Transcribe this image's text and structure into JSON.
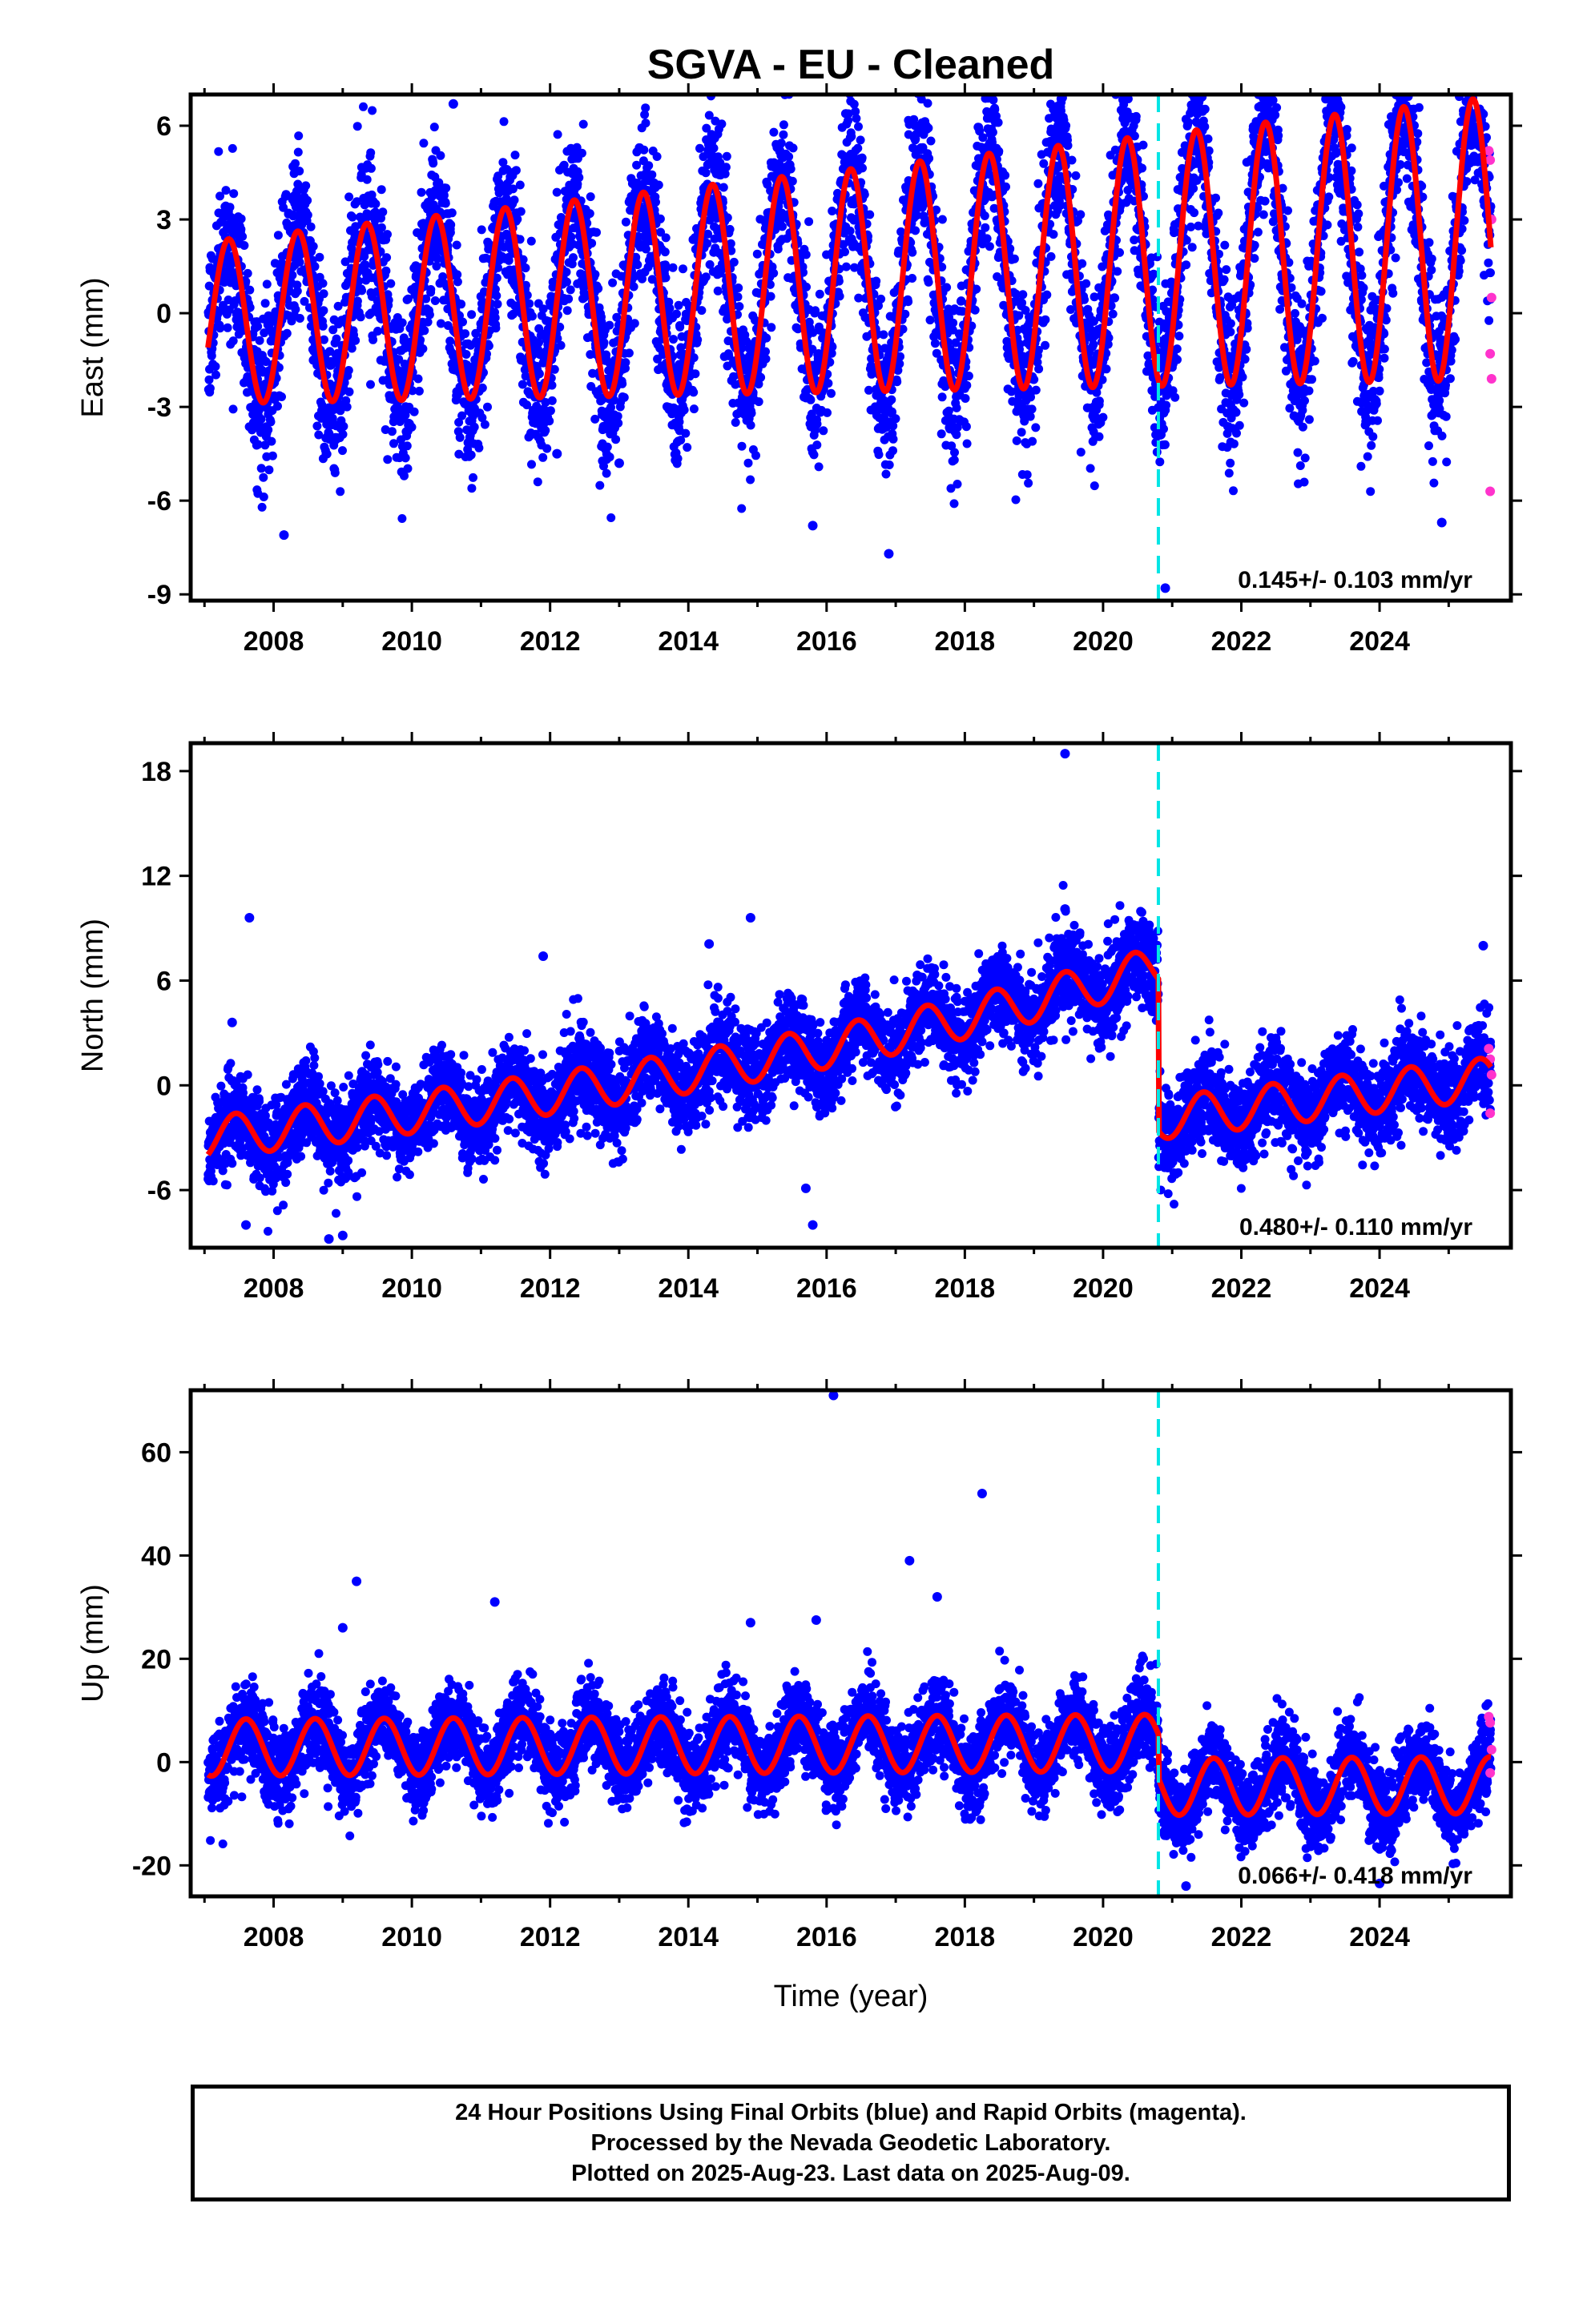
{
  "chart_data": {
    "type": "scatter",
    "title": "SGVA  - EU - Cleaned",
    "xlabel": "Time (year)",
    "xlim": [
      2006.8,
      2025.9
    ],
    "xticks": [
      2008,
      2010,
      2012,
      2014,
      2016,
      2018,
      2020,
      2022,
      2024
    ],
    "xtick_labels": [
      "2008",
      "2010",
      "2012",
      "2014",
      "2016",
      "2018",
      "2020",
      "2022",
      "2024"
    ],
    "grid": false,
    "legend": "none",
    "colors": {
      "final_orbits": "#0000ff",
      "rapid_orbits": "#ff33cc",
      "model": "#ff0000",
      "step": "#00e5e5"
    },
    "series_description": "24 hour positions (blue = final orbits, magenta = rapid orbits) with fitted trend + seasonal model (red)",
    "step_epoch": 2020.8,
    "data_span": [
      2007.05,
      2025.61
    ],
    "panels": [
      {
        "component": "east",
        "ylabel": "East (mm)",
        "ylim": [
          -9.2,
          7.0
        ],
        "yticks": [
          -9,
          -6,
          -3,
          0,
          3,
          6
        ],
        "ytick_labels": [
          "-9",
          "-6",
          "-3",
          "0",
          "3",
          "6"
        ],
        "rate": "0.145+/- 0.103 mm/yr",
        "model": {
          "t0": 2007.05,
          "offset_start": -0.3,
          "rate": 0.145,
          "seasonal_amp": 2.6,
          "phase_peak": 0.35,
          "amp_growth": 0.04,
          "step": 0.0
        },
        "scatter_noise": 1.3,
        "outliers": [
          [
            2010.6,
            6.7
          ],
          [
            2008.15,
            -7.1
          ],
          [
            2015.8,
            -6.8
          ],
          [
            2016.9,
            -7.7
          ],
          [
            2020.9,
            -8.8
          ],
          [
            2024.9,
            -6.7
          ],
          [
            2012.1,
            -4.5
          ],
          [
            2013.0,
            -4.8
          ]
        ],
        "rapid_points": [
          [
            2025.58,
            5.2
          ],
          [
            2025.6,
            4.9
          ],
          [
            2025.62,
            3.0
          ],
          [
            2025.62,
            0.5
          ],
          [
            2025.6,
            -1.3
          ],
          [
            2025.62,
            -2.1
          ],
          [
            2025.6,
            -5.7
          ]
        ]
      },
      {
        "component": "north",
        "ylabel": "North (mm)",
        "ylim": [
          -9.3,
          19.6
        ],
        "yticks": [
          -6,
          0,
          6,
          12,
          18
        ],
        "ytick_labels": [
          "-6",
          "0",
          "6",
          "12",
          "18"
        ],
        "rate": "0.480+/- 0.110 mm/yr",
        "model": {
          "t0": 2007.05,
          "offset_start": -3.0,
          "rate": 0.48,
          "seasonal_amp": 1.2,
          "phase_peak": 0.45,
          "amp_growth": 0.0,
          "step": -5.5,
          "pre_step_curve": true
        },
        "scatter_noise": 1.3,
        "outliers": [
          [
            2007.65,
            9.6
          ],
          [
            2007.4,
            3.6
          ],
          [
            2008.8,
            -8.8
          ],
          [
            2011.9,
            7.4
          ],
          [
            2014.3,
            8.1
          ],
          [
            2014.9,
            9.6
          ],
          [
            2015.7,
            -5.9
          ],
          [
            2015.8,
            -8.0
          ],
          [
            2019.45,
            19.0
          ],
          [
            2019.45,
            10.1
          ],
          [
            2025.5,
            8.0
          ],
          [
            2007.6,
            -8.0
          ],
          [
            2009.0,
            -8.6
          ]
        ],
        "rapid_points": [
          [
            2025.58,
            2.1
          ],
          [
            2025.6,
            1.5
          ],
          [
            2025.62,
            0.6
          ],
          [
            2025.6,
            -1.6
          ]
        ]
      },
      {
        "component": "up",
        "ylabel": "Up (mm)",
        "ylim": [
          -26.0,
          72.0
        ],
        "yticks": [
          -20,
          0,
          20,
          40,
          60
        ],
        "ytick_labels": [
          "-20",
          "0",
          "20",
          "40",
          "60"
        ],
        "rate": "0.066+/- 0.418 mm/yr",
        "model": {
          "t0": 2007.05,
          "offset_start": 2.8,
          "rate": 0.066,
          "seasonal_amp": 5.5,
          "phase_peak": 0.6,
          "amp_growth": 0.0,
          "step": -8.5
        },
        "scatter_noise": 4.0,
        "outliers": [
          [
            2016.1,
            71.0
          ],
          [
            2018.25,
            52.0
          ],
          [
            2017.2,
            39.0
          ],
          [
            2017.6,
            32.0
          ],
          [
            2009.2,
            35.0
          ],
          [
            2011.2,
            31.0
          ],
          [
            2009.0,
            26.0
          ],
          [
            2014.9,
            27.0
          ],
          [
            2015.85,
            27.5
          ],
          [
            2021.2,
            -24.0
          ],
          [
            2024.0,
            -23.5
          ]
        ],
        "rapid_points": [
          [
            2025.58,
            8.8
          ],
          [
            2025.6,
            7.6
          ],
          [
            2025.62,
            2.4
          ],
          [
            2025.6,
            -2.1
          ]
        ]
      }
    ]
  },
  "footer": {
    "line1": "24 Hour Positions Using Final Orbits (blue) and Rapid Orbits (magenta).",
    "line2": "Processed by the Nevada Geodetic Laboratory.",
    "line3": "Plotted on 2025-Aug-23. Last data on 2025-Aug-09."
  }
}
